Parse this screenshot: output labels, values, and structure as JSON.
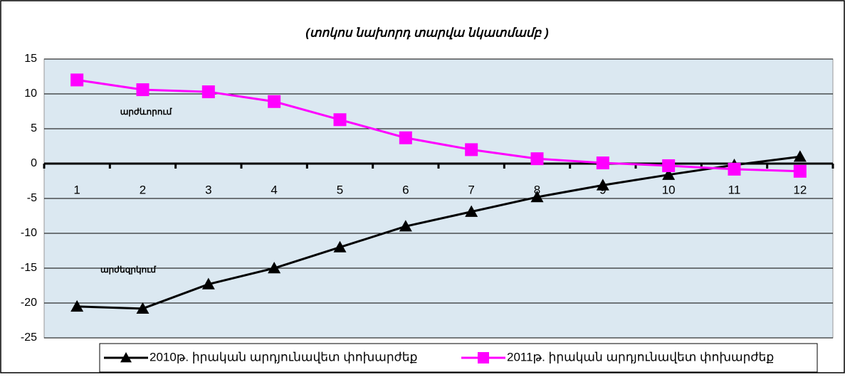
{
  "chart_data": {
    "type": "line",
    "title": "(տոկոս նախորդ տարվա նկատմամբ )",
    "annotations": [
      "արժևորում",
      "արժեզրկում"
    ],
    "categories": [
      "1",
      "2",
      "3",
      "4",
      "5",
      "6",
      "7",
      "8",
      "9",
      "10",
      "11",
      "12"
    ],
    "series": [
      {
        "name": "2010թ. իրական արդյունավետ փոխարժեք",
        "color": "#000000",
        "marker": "triangle",
        "values": [
          -20.5,
          -20.8,
          -17.3,
          -15,
          -12,
          -9,
          -6.9,
          -4.8,
          -3.1,
          -1.6,
          -0.2,
          1.0
        ]
      },
      {
        "name": "2011թ. իրական արդյունավետ փոխարժեք",
        "color": "#ff00ff",
        "marker": "square",
        "values": [
          12,
          10.6,
          10.3,
          8.9,
          6.3,
          3.7,
          2.0,
          0.7,
          0.1,
          -0.3,
          -0.8,
          -1.1
        ]
      }
    ],
    "ylim": [
      -25,
      15
    ],
    "yticks": [
      15,
      10,
      5,
      0,
      -5,
      -10,
      -15,
      -20,
      -25
    ],
    "grid": true,
    "legend": "bottom"
  }
}
